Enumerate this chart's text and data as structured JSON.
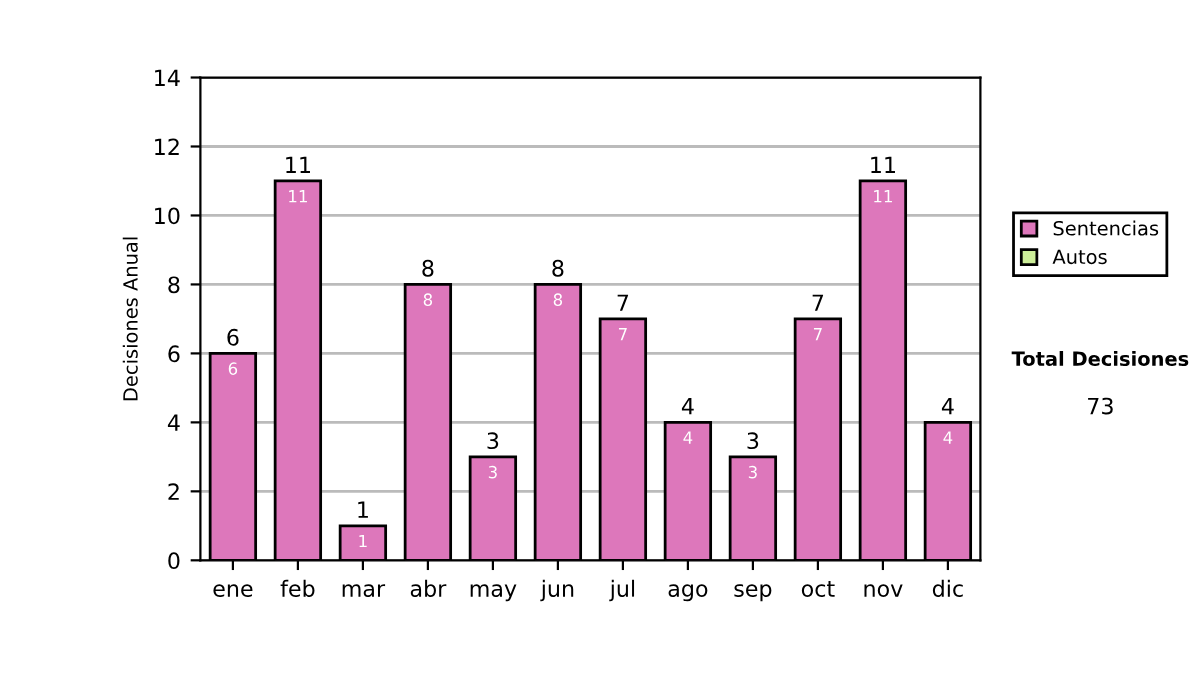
{
  "chart_data": {
    "type": "bar",
    "ylabel": "Decisiones Anual",
    "categories": [
      "ene",
      "feb",
      "mar",
      "abr",
      "may",
      "jun",
      "jul",
      "ago",
      "sep",
      "oct",
      "nov",
      "dic"
    ],
    "series": [
      {
        "name": "Sentencias",
        "color": "#dd77bb",
        "values": [
          6,
          11,
          1,
          8,
          3,
          8,
          7,
          4,
          3,
          7,
          11,
          4
        ],
        "value_labels": [
          "6",
          "11",
          "1",
          "8",
          "3",
          "8",
          "7",
          "4",
          "3",
          "7",
          "11",
          "4"
        ]
      },
      {
        "name": "Autos",
        "color": "#ccee99",
        "values": [
          null,
          null,
          null,
          null,
          null,
          null,
          null,
          null,
          null,
          null,
          null,
          null
        ]
      }
    ],
    "stacked": true,
    "totals": [
      "6",
      "11",
      "1",
      "8",
      "3",
      "8",
      "7",
      "4",
      "3",
      "7",
      "11",
      "4"
    ],
    "ylim": [
      0,
      14
    ],
    "yticks": [
      0,
      2,
      4,
      6,
      8,
      10,
      12,
      14
    ],
    "grid": "y",
    "legend": "right",
    "annotations": [
      "Total Decisiones",
      "73"
    ]
  }
}
